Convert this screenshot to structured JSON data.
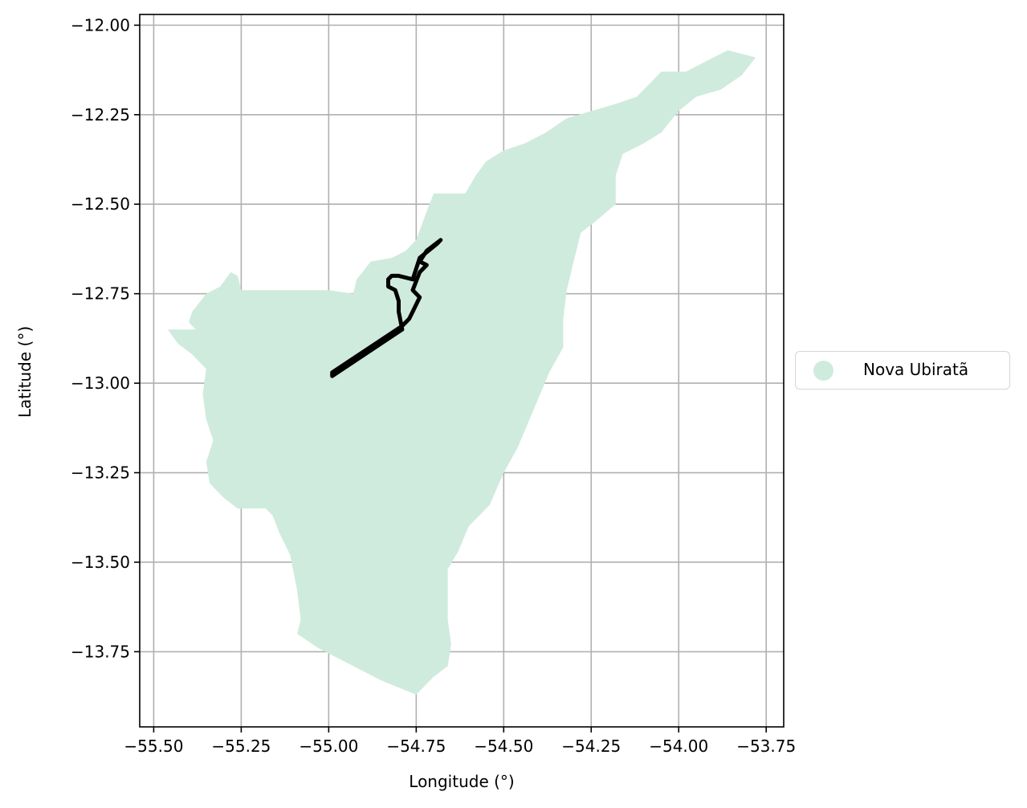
{
  "map": {
    "xlabel": "Longitude (°)",
    "ylabel": "Latitude (°)",
    "xlim": [
      -55.54,
      -53.7
    ],
    "ylim": [
      -13.96,
      -11.97
    ],
    "x_ticks": [
      -55.5,
      -55.25,
      -55.0,
      -54.75,
      -54.5,
      -54.25,
      -54.0,
      -53.75
    ],
    "x_tick_labels": [
      "−55.50",
      "−55.25",
      "−55.00",
      "−54.75",
      "−54.50",
      "−54.25",
      "−54.00",
      "−53.75"
    ],
    "y_ticks": [
      -12.0,
      -12.25,
      -12.5,
      -12.75,
      -13.0,
      -13.25,
      -13.5,
      -13.75
    ],
    "y_tick_labels": [
      "−12.00",
      "−12.25",
      "−12.50",
      "−12.75",
      "−13.00",
      "−13.25",
      "−13.50",
      "−13.75"
    ],
    "grid": true,
    "region_name": "Nova Ubiratã",
    "region_color": "#cfebdd",
    "outline_color": "#000000",
    "legend_placement": "center-right-outside",
    "region_polygon": [
      [
        -55.46,
        -12.85
      ],
      [
        -55.38,
        -12.85
      ],
      [
        -55.4,
        -12.83
      ],
      [
        -55.39,
        -12.8
      ],
      [
        -55.35,
        -12.75
      ],
      [
        -55.31,
        -12.73
      ],
      [
        -55.28,
        -12.69
      ],
      [
        -55.26,
        -12.7
      ],
      [
        -55.25,
        -12.74
      ],
      [
        -55.2,
        -12.74
      ],
      [
        -55.1,
        -12.74
      ],
      [
        -55.0,
        -12.74
      ],
      [
        -54.93,
        -12.75
      ],
      [
        -54.92,
        -12.71
      ],
      [
        -54.88,
        -12.66
      ],
      [
        -54.82,
        -12.65
      ],
      [
        -54.78,
        -12.63
      ],
      [
        -54.75,
        -12.6
      ],
      [
        -54.72,
        -12.52
      ],
      [
        -54.7,
        -12.47
      ],
      [
        -54.66,
        -12.47
      ],
      [
        -54.61,
        -12.47
      ],
      [
        -54.58,
        -12.42
      ],
      [
        -54.55,
        -12.38
      ],
      [
        -54.5,
        -12.35
      ],
      [
        -54.44,
        -12.33
      ],
      [
        -54.38,
        -12.3
      ],
      [
        -54.32,
        -12.26
      ],
      [
        -54.25,
        -12.24
      ],
      [
        -54.18,
        -12.22
      ],
      [
        -54.12,
        -12.2
      ],
      [
        -54.08,
        -12.16
      ],
      [
        -54.05,
        -12.13
      ],
      [
        -53.98,
        -12.13
      ],
      [
        -53.92,
        -12.1
      ],
      [
        -53.86,
        -12.07
      ],
      [
        -53.78,
        -12.09
      ],
      [
        -53.82,
        -12.14
      ],
      [
        -53.88,
        -12.18
      ],
      [
        -53.95,
        -12.2
      ],
      [
        -54.0,
        -12.24
      ],
      [
        -54.05,
        -12.3
      ],
      [
        -54.1,
        -12.33
      ],
      [
        -54.16,
        -12.36
      ],
      [
        -54.18,
        -12.42
      ],
      [
        -54.18,
        -12.5
      ],
      [
        -54.24,
        -12.55
      ],
      [
        -54.28,
        -12.58
      ],
      [
        -54.3,
        -12.66
      ],
      [
        -54.32,
        -12.74
      ],
      [
        -54.33,
        -12.82
      ],
      [
        -54.33,
        -12.9
      ],
      [
        -54.37,
        -12.97
      ],
      [
        -54.4,
        -13.04
      ],
      [
        -54.43,
        -13.11
      ],
      [
        -54.46,
        -13.18
      ],
      [
        -54.5,
        -13.25
      ],
      [
        -54.54,
        -13.34
      ],
      [
        -54.6,
        -13.4
      ],
      [
        -54.63,
        -13.47
      ],
      [
        -54.66,
        -13.52
      ],
      [
        -54.66,
        -13.58
      ],
      [
        -54.66,
        -13.66
      ],
      [
        -54.65,
        -13.73
      ],
      [
        -54.66,
        -13.79
      ],
      [
        -54.7,
        -13.82
      ],
      [
        -54.75,
        -13.87
      ],
      [
        -54.85,
        -13.83
      ],
      [
        -54.95,
        -13.78
      ],
      [
        -55.03,
        -13.74
      ],
      [
        -55.09,
        -13.7
      ],
      [
        -55.08,
        -13.66
      ],
      [
        -55.09,
        -13.58
      ],
      [
        -55.11,
        -13.48
      ],
      [
        -55.14,
        -13.42
      ],
      [
        -55.16,
        -13.37
      ],
      [
        -55.18,
        -13.35
      ],
      [
        -55.26,
        -13.35
      ],
      [
        -55.3,
        -13.32
      ],
      [
        -55.34,
        -13.28
      ],
      [
        -55.35,
        -13.22
      ],
      [
        -55.33,
        -13.16
      ],
      [
        -55.35,
        -13.1
      ],
      [
        -55.36,
        -13.03
      ],
      [
        -55.35,
        -12.96
      ],
      [
        -55.39,
        -12.92
      ],
      [
        -55.43,
        -12.89
      ],
      [
        -55.46,
        -12.85
      ]
    ],
    "outline_polygon": [
      [
        -54.68,
        -12.6
      ],
      [
        -54.72,
        -12.63
      ],
      [
        -54.74,
        -12.66
      ],
      [
        -54.72,
        -12.67
      ],
      [
        -54.74,
        -12.69
      ],
      [
        -54.76,
        -12.74
      ],
      [
        -54.74,
        -12.76
      ],
      [
        -54.76,
        -12.8
      ],
      [
        -54.77,
        -12.82
      ],
      [
        -54.79,
        -12.84
      ],
      [
        -54.99,
        -12.97
      ],
      [
        -54.99,
        -12.98
      ],
      [
        -54.79,
        -12.85
      ],
      [
        -54.8,
        -12.8
      ],
      [
        -54.8,
        -12.77
      ],
      [
        -54.81,
        -12.74
      ],
      [
        -54.83,
        -12.73
      ],
      [
        -54.83,
        -12.71
      ],
      [
        -54.82,
        -12.7
      ],
      [
        -54.8,
        -12.7
      ],
      [
        -54.76,
        -12.71
      ],
      [
        -54.74,
        -12.65
      ],
      [
        -54.69,
        -12.61
      ],
      [
        -54.68,
        -12.6
      ]
    ]
  }
}
